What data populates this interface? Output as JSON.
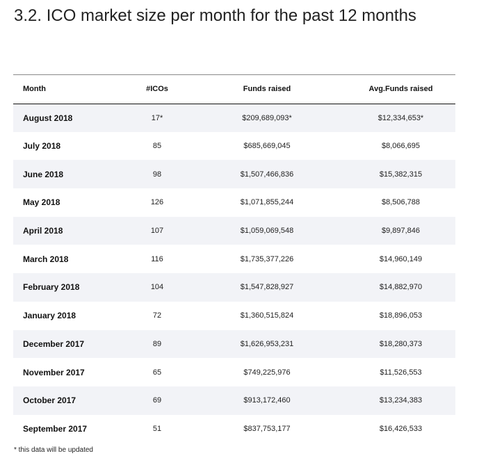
{
  "heading": "3.2. ICO market size per month for the past 12 months",
  "table": {
    "headers": {
      "month": "Month",
      "icos": "#ICOs",
      "funds": "Funds raised",
      "avg": "Avg.Funds raised"
    },
    "rows": [
      {
        "month": "August 2018",
        "icos": "17*",
        "funds": "$209,689,093*",
        "avg": "$12,334,653*"
      },
      {
        "month": "July 2018",
        "icos": "85",
        "funds": "$685,669,045",
        "avg": "$8,066,695"
      },
      {
        "month": "June 2018",
        "icos": "98",
        "funds": "$1,507,466,836",
        "avg": "$15,382,315"
      },
      {
        "month": "May 2018",
        "icos": "126",
        "funds": "$1,071,855,244",
        "avg": "$8,506,788"
      },
      {
        "month": "April 2018",
        "icos": "107",
        "funds": "$1,059,069,548",
        "avg": "$9,897,846"
      },
      {
        "month": "March 2018",
        "icos": "116",
        "funds": "$1,735,377,226",
        "avg": "$14,960,149"
      },
      {
        "month": "February 2018",
        "icos": "104",
        "funds": "$1,547,828,927",
        "avg": "$14,882,970"
      },
      {
        "month": "January 2018",
        "icos": "72",
        "funds": "$1,360,515,824",
        "avg": "$18,896,053"
      },
      {
        "month": "December 2017",
        "icos": "89",
        "funds": "$1,626,953,231",
        "avg": "$18,280,373"
      },
      {
        "month": "November 2017",
        "icos": "65",
        "funds": "$749,225,976",
        "avg": "$11,526,553"
      },
      {
        "month": "October 2017",
        "icos": "69",
        "funds": "$913,172,460",
        "avg": "$13,234,383"
      },
      {
        "month": "September 2017",
        "icos": "51",
        "funds": "$837,753,177",
        "avg": "$16,426,533"
      }
    ]
  },
  "footnote": "* this data will be updated"
}
